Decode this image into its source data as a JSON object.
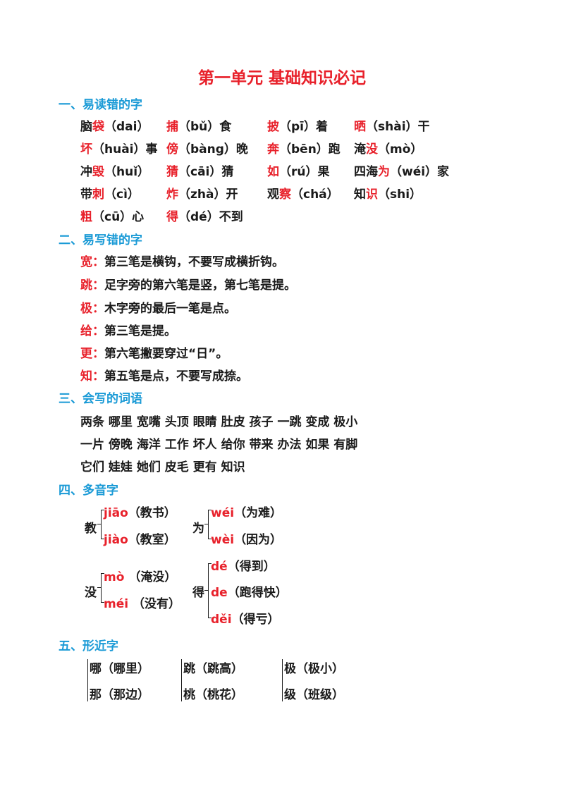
{
  "title": "第一单元 基础知识必记",
  "sections": {
    "s1": {
      "heading": "一、易读错的字"
    },
    "s2": {
      "heading": "二、易写错的字"
    },
    "s3": {
      "heading": "三、会写的词语"
    },
    "s4": {
      "heading": "四、多音字"
    },
    "s5": {
      "heading": "五、形近字"
    }
  },
  "readings": [
    [
      {
        "pre": "脑",
        "hl": "袋",
        "post": "（dai）"
      },
      {
        "pre": "",
        "hl": "捕",
        "post": "（bǔ）食"
      },
      {
        "pre": "",
        "hl": "披",
        "post": "（pī）着"
      },
      {
        "pre": "",
        "hl": "晒",
        "post": "（shài）干"
      }
    ],
    [
      {
        "pre": "",
        "hl": "坏",
        "post": "（huài）事"
      },
      {
        "pre": "",
        "hl": "傍",
        "post": "（bàng）晚"
      },
      {
        "pre": "",
        "hl": "奔",
        "post": "（bēn）跑"
      },
      {
        "pre": "淹",
        "hl": "没",
        "post": "（mò）"
      }
    ],
    [
      {
        "pre": "冲",
        "hl": "毁",
        "post": "（huǐ）"
      },
      {
        "pre": "",
        "hl": "猜",
        "post": "（cāi）猜"
      },
      {
        "pre": "",
        "hl": "如",
        "post": "（rú）果"
      },
      {
        "pre": "四海",
        "hl": "为",
        "post": "（wéi）家"
      }
    ],
    [
      {
        "pre": "带",
        "hl": "刺",
        "post": "（cì）"
      },
      {
        "pre": "",
        "hl": "炸",
        "post": "（zhà）开"
      },
      {
        "pre": "观",
        "hl": "察",
        "post": "（chá）"
      },
      {
        "pre": "知",
        "hl": "识",
        "post": "（shi）"
      }
    ],
    [
      {
        "pre": "",
        "hl": "粗",
        "post": "（cū）心"
      },
      {
        "pre": "",
        "hl": "得",
        "post": "（dé）不到"
      }
    ]
  ],
  "writing_errors": [
    {
      "char": "宽：",
      "text": "第三笔是横钩，不要写成横折钩。"
    },
    {
      "char": "跳：",
      "text": "足字旁的第六笔是竖，第七笔是提。"
    },
    {
      "char": "极：",
      "text": "木字旁的最后一笔是点。"
    },
    {
      "char": "给：",
      "text": "第三笔是提。"
    },
    {
      "char": "更：",
      "text": "第六笔撇要穿过“日”。"
    },
    {
      "char": "知：",
      "text": "第五笔是点，不要写成捺。"
    }
  ],
  "words": [
    [
      "两条",
      "哪里",
      "宽嘴",
      "头顶",
      "眼睛",
      "肚皮",
      "孩子",
      "一跳",
      "变成",
      "极小"
    ],
    [
      "一片",
      "傍晚",
      "海洋",
      "工作",
      "坏人",
      "给你",
      "带来",
      "办法",
      "如果",
      "有脚"
    ],
    [
      "它们",
      "娃娃",
      "她们",
      "皮毛",
      "更有",
      "知识"
    ]
  ],
  "polyphones": {
    "jiao": {
      "char": "教",
      "items": [
        {
          "py": "jiāo",
          "ex": "（教书）"
        },
        {
          "py": "jiào",
          "ex": "（教室）"
        }
      ]
    },
    "wei": {
      "char": "为",
      "items": [
        {
          "py": "wéi",
          "ex": "（为难）"
        },
        {
          "py": "wèi",
          "ex": "（因为）"
        }
      ]
    },
    "mei": {
      "char": "没",
      "items": [
        {
          "py": "mò",
          "ex": "（淹没）"
        },
        {
          "py": "méi",
          "ex": "（没有）"
        }
      ]
    },
    "de": {
      "char": "得",
      "items": [
        {
          "py": "dé",
          "ex": "（得到）"
        },
        {
          "py": "de",
          "ex": "（跑得快）"
        },
        {
          "py": "děi",
          "ex": "（得亏）"
        }
      ]
    }
  },
  "similar": [
    [
      "哪（哪里）",
      "那（那边）"
    ],
    [
      "跳（跳高）",
      "桃（桃花）"
    ],
    [
      "极（极小）",
      "级（班级）"
    ]
  ]
}
